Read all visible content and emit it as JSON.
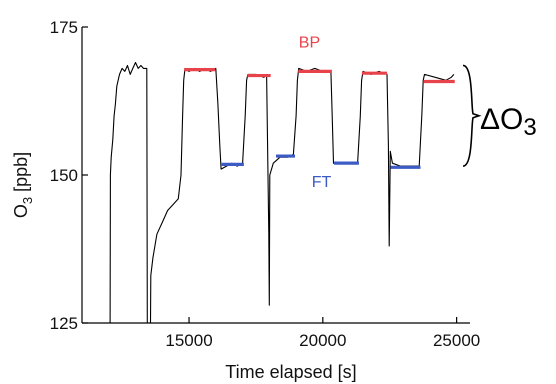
{
  "chart_data": {
    "type": "line",
    "xlabel": "Time elapsed [s]",
    "ylabel": "O3 [ppb]",
    "xlim": [
      11000,
      25500
    ],
    "ylim": [
      125,
      175
    ],
    "x_ticks": [
      15000,
      20000,
      25000
    ],
    "x_tick_labels": [
      "15000",
      "20000",
      "25000"
    ],
    "y_ticks": [
      125,
      150,
      175
    ],
    "y_tick_labels": [
      "125",
      "150",
      "175"
    ],
    "grid": false,
    "legend": "none",
    "series": [
      {
        "color": "#000000",
        "points": [
          [
            12050,
            125
          ],
          [
            12060,
            150
          ],
          [
            12090,
            153
          ],
          [
            12150,
            156
          ],
          [
            12200,
            160
          ],
          [
            12250,
            162
          ],
          [
            12300,
            165
          ],
          [
            12400,
            167
          ],
          [
            12500,
            168
          ],
          [
            12600,
            167.5
          ],
          [
            12700,
            168.5
          ],
          [
            12800,
            167
          ],
          [
            12900,
            168
          ],
          [
            13000,
            169
          ],
          [
            13100,
            168
          ],
          [
            13200,
            168.5
          ],
          [
            13300,
            168
          ],
          [
            13420,
            168
          ],
          [
            13440,
            125
          ],
          [
            13560,
            125
          ],
          [
            13570,
            133
          ],
          [
            13650,
            136
          ],
          [
            13800,
            140
          ],
          [
            14000,
            142
          ],
          [
            14200,
            144
          ],
          [
            14400,
            145
          ],
          [
            14600,
            146
          ],
          [
            14700,
            150
          ],
          [
            14760,
            160
          ],
          [
            14800,
            166
          ],
          [
            14850,
            168
          ],
          [
            15000,
            167.5
          ],
          [
            15200,
            168
          ],
          [
            15400,
            167.5
          ],
          [
            15600,
            168
          ],
          [
            15800,
            167.5
          ],
          [
            16000,
            168
          ],
          [
            16080,
            162
          ],
          [
            16150,
            155
          ],
          [
            16200,
            151
          ],
          [
            16400,
            151.5
          ],
          [
            16600,
            152
          ],
          [
            16800,
            151.5
          ],
          [
            17000,
            152
          ],
          [
            17100,
            160
          ],
          [
            17150,
            166
          ],
          [
            17200,
            167
          ],
          [
            17500,
            167
          ],
          [
            17800,
            166.5
          ],
          [
            17900,
            167
          ],
          [
            17980,
            140
          ],
          [
            18000,
            128
          ],
          [
            18020,
            150
          ],
          [
            18150,
            152
          ],
          [
            18400,
            153
          ],
          [
            18700,
            153
          ],
          [
            18900,
            153.5
          ],
          [
            19000,
            160
          ],
          [
            19050,
            166
          ],
          [
            19100,
            168
          ],
          [
            19400,
            167.5
          ],
          [
            19700,
            168
          ],
          [
            20000,
            167.5
          ],
          [
            20300,
            167.5
          ],
          [
            20350,
            160
          ],
          [
            20400,
            152
          ],
          [
            20700,
            152
          ],
          [
            21000,
            152
          ],
          [
            21300,
            152
          ],
          [
            21400,
            160
          ],
          [
            21450,
            166
          ],
          [
            21500,
            167.5
          ],
          [
            21800,
            167
          ],
          [
            22100,
            167.5
          ],
          [
            22400,
            167
          ],
          [
            22450,
            155
          ],
          [
            22480,
            138
          ],
          [
            22520,
            154
          ],
          [
            22600,
            152
          ],
          [
            22900,
            151.5
          ],
          [
            23200,
            151.5
          ],
          [
            23600,
            151.5
          ],
          [
            23700,
            160
          ],
          [
            23750,
            166
          ],
          [
            23800,
            167
          ],
          [
            24200,
            166.5
          ],
          [
            24600,
            166
          ],
          [
            24800,
            166.5
          ],
          [
            24900,
            167
          ]
        ]
      }
    ],
    "levels": [
      {
        "group": "BP",
        "color": "#e8424a",
        "x": [
          14820,
          15980
        ],
        "y": 167.8
      },
      {
        "group": "BP",
        "color": "#e8424a",
        "x": [
          17180,
          18050
        ],
        "y": 166.8
      },
      {
        "group": "BP",
        "color": "#e8424a",
        "x": [
          19080,
          20340
        ],
        "y": 167.5
      },
      {
        "group": "BP",
        "color": "#e8424a",
        "x": [
          21460,
          22400
        ],
        "y": 167.2
      },
      {
        "group": "BP",
        "color": "#e8424a",
        "x": [
          23780,
          24930
        ],
        "y": 165.8
      },
      {
        "group": "FT",
        "color": "#3c5bc4",
        "x": [
          16220,
          17050
        ],
        "y": 151.8
      },
      {
        "group": "FT",
        "color": "#3c5bc4",
        "x": [
          18250,
          18960
        ],
        "y": 153.2
      },
      {
        "group": "FT",
        "color": "#3c5bc4",
        "x": [
          20420,
          21350
        ],
        "y": 152.0
      },
      {
        "group": "FT",
        "color": "#3c5bc4",
        "x": [
          22530,
          23650
        ],
        "y": 151.3
      }
    ],
    "annotations": [
      {
        "text": "BP",
        "color": "#e8424a",
        "x": 19500,
        "y": 171.5
      },
      {
        "text": "FT",
        "color": "#3c5bc4",
        "x": 19950,
        "y": 148.0
      },
      {
        "text": "ΔO3",
        "brace_from_y": 151.5,
        "brace_to_y": 168.5
      }
    ]
  }
}
